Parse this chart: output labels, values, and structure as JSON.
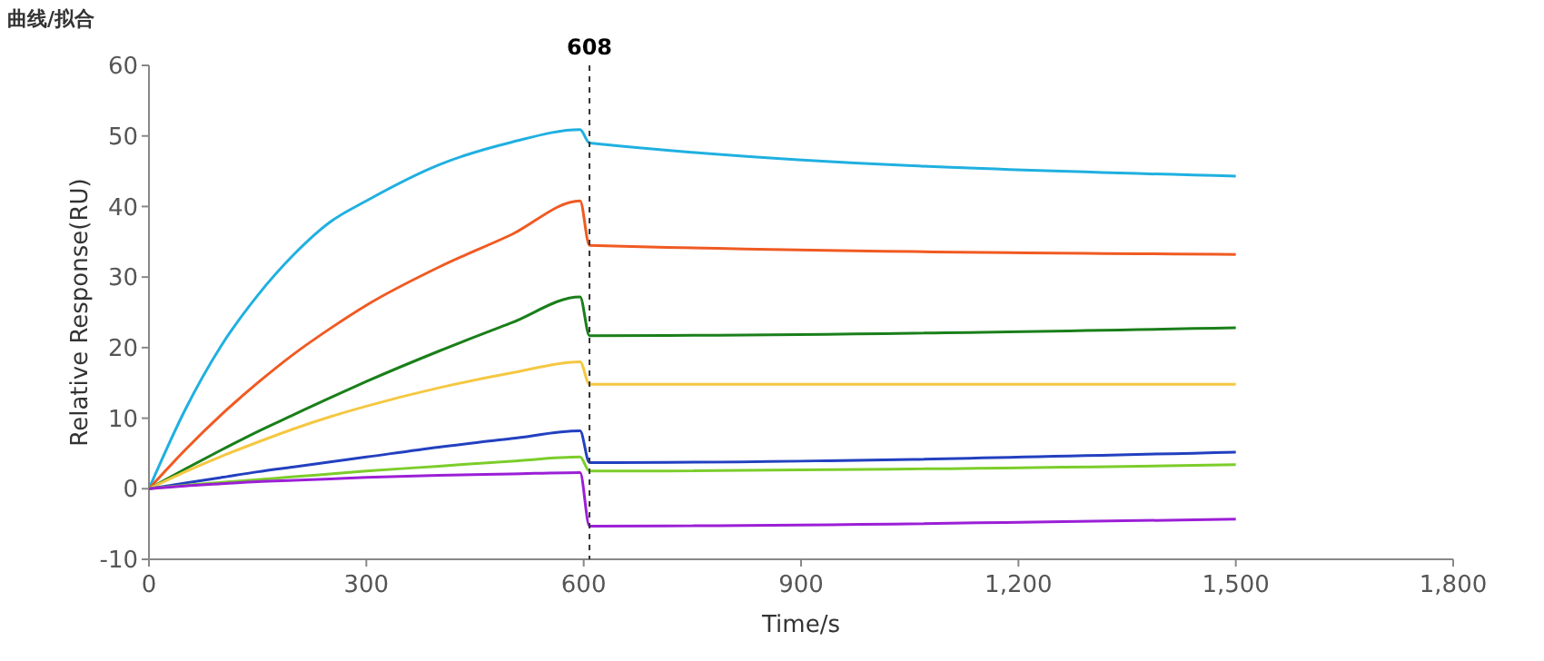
{
  "chart_data": {
    "type": "line",
    "title": "曲线/拟合",
    "xlabel": "Time/s",
    "ylabel": "Relative Response(RU)",
    "xlim": [
      0,
      1800
    ],
    "xticks": [
      0,
      300,
      600,
      900,
      {
        "value": 1200,
        "label": "1,200"
      },
      {
        "value": 1500,
        "label": "1,500"
      },
      {
        "value": 1800,
        "label": "1,800"
      }
    ],
    "ylim": [
      -10,
      60
    ],
    "yticks": [
      -10,
      0,
      10,
      20,
      30,
      40,
      50,
      60
    ],
    "grid": false,
    "marker": "none",
    "line_style": "solid",
    "ref_lines": [
      {
        "axis": "x",
        "value": 608,
        "label": "608",
        "color": "#333333",
        "line_style": "dashed"
      }
    ],
    "x": [
      0,
      50,
      100,
      150,
      200,
      250,
      300,
      400,
      500,
      595,
      608,
      1500
    ],
    "series": [
      {
        "color": "#1fb0e0",
        "values": [
          0,
          11.2,
          20.3,
          27.4,
          33.2,
          37.8,
          40.8,
          45.9,
          49.1,
          50.9,
          49,
          44.3
        ]
      },
      {
        "color": "#f05a22",
        "values": [
          0,
          5.5,
          10.5,
          15,
          19.1,
          22.7,
          26,
          31.4,
          36,
          40.8,
          34.5,
          33.2
        ]
      },
      {
        "color": "#1a7f1a",
        "values": [
          0,
          2.8,
          5.5,
          8.1,
          10.5,
          12.9,
          15.2,
          19.5,
          23.5,
          27.2,
          21.7,
          22.8
        ]
      },
      {
        "color": "#f5c842",
        "values": [
          0,
          2.4,
          4.6,
          6.6,
          8.5,
          10.2,
          11.7,
          14.3,
          16.4,
          18,
          14.8,
          14.8
        ]
      },
      {
        "color": "#2240c0",
        "values": [
          0,
          0.8,
          1.6,
          2.4,
          3.1,
          3.8,
          4.5,
          5.9,
          7.1,
          8.2,
          3.7,
          5.2
        ]
      },
      {
        "color": "#7ccd2a",
        "values": [
          0,
          0.5,
          0.9,
          1.3,
          1.7,
          2.1,
          2.5,
          3.2,
          3.9,
          4.5,
          2.5,
          3.4
        ]
      },
      {
        "color": "#9b1fd6",
        "values": [
          0,
          0.4,
          0.7,
          1,
          1.2,
          1.4,
          1.6,
          1.9,
          2.1,
          2.3,
          -5.3,
          -4.3
        ]
      }
    ]
  }
}
